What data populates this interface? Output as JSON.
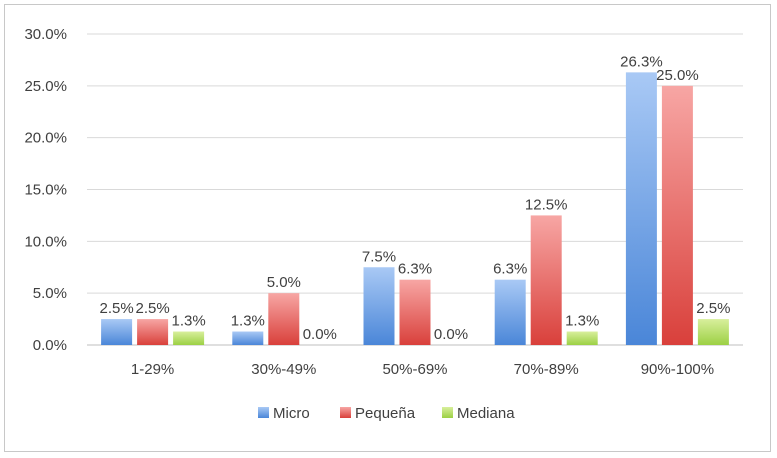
{
  "chart_data": {
    "type": "bar",
    "title": "",
    "xlabel": "",
    "ylabel": "",
    "categories": [
      "1-29%",
      "30%-49%",
      "50%-69%",
      "70%-89%",
      "90%-100%"
    ],
    "series": [
      {
        "name": "Micro",
        "values": [
          2.5,
          1.3,
          7.5,
          6.3,
          26.3
        ],
        "labels": [
          "2.5%",
          "1.3%",
          "7.5%",
          "6.3%",
          "26.3%"
        ]
      },
      {
        "name": "Pequeña",
        "values": [
          2.5,
          5.0,
          6.3,
          12.5,
          25.0
        ],
        "labels": [
          "2.5%",
          "5.0%",
          "6.3%",
          "12.5%",
          "25.0%"
        ]
      },
      {
        "name": "Mediana",
        "values": [
          1.3,
          0.0,
          0.0,
          1.3,
          2.5
        ],
        "labels": [
          "1.3%",
          "0.0%",
          "0.0%",
          "1.3%",
          "2.5%"
        ]
      }
    ],
    "ylim": [
      0,
      30
    ],
    "yticks": [
      0,
      5,
      10,
      15,
      20,
      25,
      30
    ],
    "ytick_labels": [
      "0.0%",
      "5.0%",
      "10.0%",
      "15.0%",
      "20.0%",
      "25.0%",
      "30.0%"
    ],
    "grid": true,
    "legend": "bottom",
    "colors": {
      "Micro": [
        "#a9c9f5",
        "#4a86d8"
      ],
      "Pequeña": [
        "#f7a6a4",
        "#d9403b"
      ],
      "Mediana": [
        "#d8ef9c",
        "#9cd044"
      ]
    }
  }
}
